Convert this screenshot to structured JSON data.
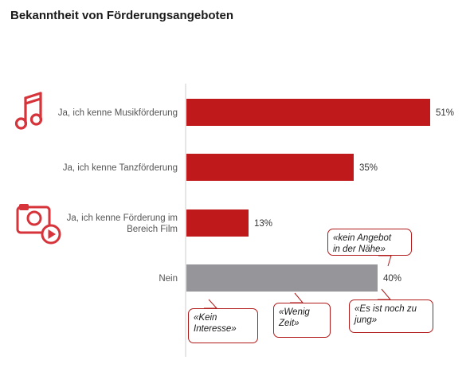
{
  "chart_data": {
    "type": "bar",
    "orientation": "horizontal",
    "title": "Bekanntheit von Förderungsangeboten",
    "categories": [
      [
        "Ja, ich kenne Musikförderung"
      ],
      [
        "Ja, ich kenne Tanzförderung"
      ],
      [
        "Ja, ich kenne Förderung im",
        "Bereich Film"
      ],
      [
        "Nein"
      ]
    ],
    "values": [
      51,
      35,
      13,
      40
    ],
    "value_labels": [
      "51%",
      "35%",
      "13%",
      "40%"
    ],
    "xlim": [
      0,
      60
    ],
    "bar_colors": [
      "#c0191b",
      "#c0191b",
      "#c0191b",
      "#96969a"
    ],
    "icons": [
      {
        "category_index": 0,
        "icon": "music-note-icon"
      },
      {
        "category_index": 2,
        "icon": "film-camera-icon"
      }
    ],
    "annotations": [
      {
        "lines": [
          "«kein Angebot",
          "in der Nähe»"
        ]
      },
      {
        "lines": [
          "«Kein",
          "Interesse»"
        ]
      },
      {
        "lines": [
          "«Wenig",
          "Zeit»"
        ]
      },
      {
        "lines": [
          "«Es ist noch zu",
          "jung»"
        ]
      }
    ]
  },
  "colors": {
    "accent": "#c0191b",
    "neutral_bar": "#96969a",
    "axis": "#cccccc"
  }
}
